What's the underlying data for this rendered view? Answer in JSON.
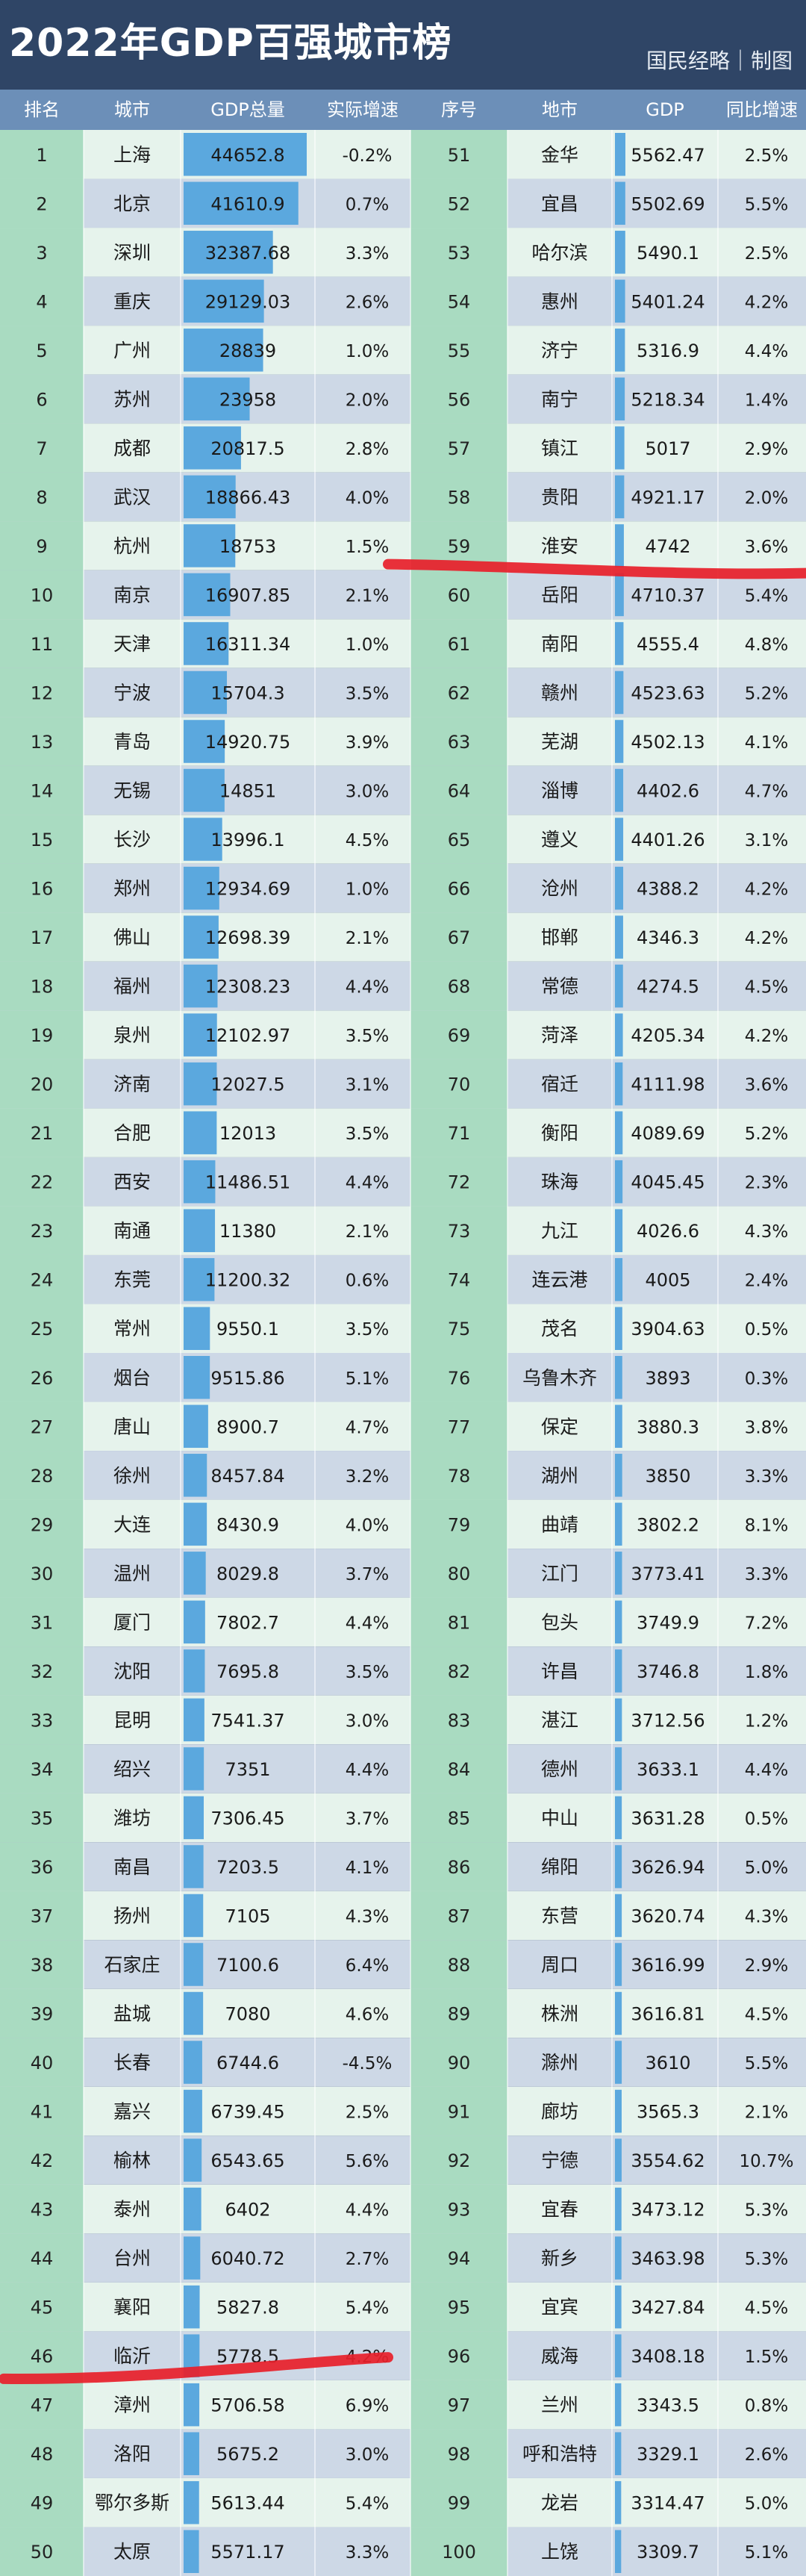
{
  "title": "2022年GDP百强城市榜",
  "brand": "国民经略｜制图",
  "header": {
    "left": [
      "排名",
      "城市",
      "GDP总量",
      "实际增速"
    ],
    "right": [
      "序号",
      "地市",
      "GDP",
      "同比增速"
    ]
  },
  "colors": {
    "title_bg": "#2f4566",
    "header_bg": "#6c8fb8",
    "rank_band": "#a9dbc1",
    "row_light": "#e6f3ec",
    "row_dark": "#cdd8e6",
    "bar_fill": "#5ba8de",
    "annotation_red": "#e8202a"
  },
  "chart_data": {
    "type": "table",
    "title": "2022年GDP百强城市榜",
    "columns": [
      "排名",
      "城市",
      "GDP总量",
      "实际增速"
    ],
    "bar_column": "GDP总量",
    "rows": [
      {
        "rank": "1",
        "city": "上海",
        "gdp": "44652.8",
        "growth": "-0.2%"
      },
      {
        "rank": "2",
        "city": "北京",
        "gdp": "41610.9",
        "growth": "0.7%"
      },
      {
        "rank": "3",
        "city": "深圳",
        "gdp": "32387.68",
        "growth": "3.3%"
      },
      {
        "rank": "4",
        "city": "重庆",
        "gdp": "29129.03",
        "growth": "2.6%"
      },
      {
        "rank": "5",
        "city": "广州",
        "gdp": "28839",
        "growth": "1.0%"
      },
      {
        "rank": "6",
        "city": "苏州",
        "gdp": "23958",
        "growth": "2.0%"
      },
      {
        "rank": "7",
        "city": "成都",
        "gdp": "20817.5",
        "growth": "2.8%"
      },
      {
        "rank": "8",
        "city": "武汉",
        "gdp": "18866.43",
        "growth": "4.0%"
      },
      {
        "rank": "9",
        "city": "杭州",
        "gdp": "18753",
        "growth": "1.5%"
      },
      {
        "rank": "10",
        "city": "南京",
        "gdp": "16907.85",
        "growth": "2.1%"
      },
      {
        "rank": "11",
        "city": "天津",
        "gdp": "16311.34",
        "growth": "1.0%"
      },
      {
        "rank": "12",
        "city": "宁波",
        "gdp": "15704.3",
        "growth": "3.5%"
      },
      {
        "rank": "13",
        "city": "青岛",
        "gdp": "14920.75",
        "growth": "3.9%"
      },
      {
        "rank": "14",
        "city": "无锡",
        "gdp": "14851",
        "growth": "3.0%"
      },
      {
        "rank": "15",
        "city": "长沙",
        "gdp": "13996.1",
        "growth": "4.5%"
      },
      {
        "rank": "16",
        "city": "郑州",
        "gdp": "12934.69",
        "growth": "1.0%"
      },
      {
        "rank": "17",
        "city": "佛山",
        "gdp": "12698.39",
        "growth": "2.1%"
      },
      {
        "rank": "18",
        "city": "福州",
        "gdp": "12308.23",
        "growth": "4.4%"
      },
      {
        "rank": "19",
        "city": "泉州",
        "gdp": "12102.97",
        "growth": "3.5%"
      },
      {
        "rank": "20",
        "city": "济南",
        "gdp": "12027.5",
        "growth": "3.1%"
      },
      {
        "rank": "21",
        "city": "合肥",
        "gdp": "12013",
        "growth": "3.5%"
      },
      {
        "rank": "22",
        "city": "西安",
        "gdp": "11486.51",
        "growth": "4.4%"
      },
      {
        "rank": "23",
        "city": "南通",
        "gdp": "11380",
        "growth": "2.1%"
      },
      {
        "rank": "24",
        "city": "东莞",
        "gdp": "11200.32",
        "growth": "0.6%"
      },
      {
        "rank": "25",
        "city": "常州",
        "gdp": "9550.1",
        "growth": "3.5%"
      },
      {
        "rank": "26",
        "city": "烟台",
        "gdp": "9515.86",
        "growth": "5.1%"
      },
      {
        "rank": "27",
        "city": "唐山",
        "gdp": "8900.7",
        "growth": "4.7%"
      },
      {
        "rank": "28",
        "city": "徐州",
        "gdp": "8457.84",
        "growth": "3.2%"
      },
      {
        "rank": "29",
        "city": "大连",
        "gdp": "8430.9",
        "growth": "4.0%"
      },
      {
        "rank": "30",
        "city": "温州",
        "gdp": "8029.8",
        "growth": "3.7%"
      },
      {
        "rank": "31",
        "city": "厦门",
        "gdp": "7802.7",
        "growth": "4.4%"
      },
      {
        "rank": "32",
        "city": "沈阳",
        "gdp": "7695.8",
        "growth": "3.5%"
      },
      {
        "rank": "33",
        "city": "昆明",
        "gdp": "7541.37",
        "growth": "3.0%"
      },
      {
        "rank": "34",
        "city": "绍兴",
        "gdp": "7351",
        "growth": "4.4%"
      },
      {
        "rank": "35",
        "city": "潍坊",
        "gdp": "7306.45",
        "growth": "3.7%"
      },
      {
        "rank": "36",
        "city": "南昌",
        "gdp": "7203.5",
        "growth": "4.1%"
      },
      {
        "rank": "37",
        "city": "扬州",
        "gdp": "7105",
        "growth": "4.3%"
      },
      {
        "rank": "38",
        "city": "石家庄",
        "gdp": "7100.6",
        "growth": "6.4%"
      },
      {
        "rank": "39",
        "city": "盐城",
        "gdp": "7080",
        "growth": "4.6%"
      },
      {
        "rank": "40",
        "city": "长春",
        "gdp": "6744.6",
        "growth": "-4.5%"
      },
      {
        "rank": "41",
        "city": "嘉兴",
        "gdp": "6739.45",
        "growth": "2.5%"
      },
      {
        "rank": "42",
        "city": "榆林",
        "gdp": "6543.65",
        "growth": "5.6%"
      },
      {
        "rank": "43",
        "city": "泰州",
        "gdp": "6402",
        "growth": "4.4%"
      },
      {
        "rank": "44",
        "city": "台州",
        "gdp": "6040.72",
        "growth": "2.7%"
      },
      {
        "rank": "45",
        "city": "襄阳",
        "gdp": "5827.8",
        "growth": "5.4%"
      },
      {
        "rank": "46",
        "city": "临沂",
        "gdp": "5778.5",
        "growth": "4.2%"
      },
      {
        "rank": "47",
        "city": "漳州",
        "gdp": "5706.58",
        "growth": "6.9%"
      },
      {
        "rank": "48",
        "city": "洛阳",
        "gdp": "5675.2",
        "growth": "3.0%"
      },
      {
        "rank": "49",
        "city": "鄂尔多斯",
        "gdp": "5613.44",
        "growth": "5.4%"
      },
      {
        "rank": "50",
        "city": "太原",
        "gdp": "5571.17",
        "growth": "3.3%"
      },
      {
        "rank": "51",
        "city": "金华",
        "gdp": "5562.47",
        "growth": "2.5%"
      },
      {
        "rank": "52",
        "city": "宜昌",
        "gdp": "5502.69",
        "growth": "5.5%"
      },
      {
        "rank": "53",
        "city": "哈尔滨",
        "gdp": "5490.1",
        "growth": "2.5%"
      },
      {
        "rank": "54",
        "city": "惠州",
        "gdp": "5401.24",
        "growth": "4.2%"
      },
      {
        "rank": "55",
        "city": "济宁",
        "gdp": "5316.9",
        "growth": "4.4%"
      },
      {
        "rank": "56",
        "city": "南宁",
        "gdp": "5218.34",
        "growth": "1.4%"
      },
      {
        "rank": "57",
        "city": "镇江",
        "gdp": "5017",
        "growth": "2.9%"
      },
      {
        "rank": "58",
        "city": "贵阳",
        "gdp": "4921.17",
        "growth": "2.0%"
      },
      {
        "rank": "59",
        "city": "淮安",
        "gdp": "4742",
        "growth": "3.6%"
      },
      {
        "rank": "60",
        "city": "岳阳",
        "gdp": "4710.37",
        "growth": "5.4%"
      },
      {
        "rank": "61",
        "city": "南阳",
        "gdp": "4555.4",
        "growth": "4.8%"
      },
      {
        "rank": "62",
        "city": "赣州",
        "gdp": "4523.63",
        "growth": "5.2%"
      },
      {
        "rank": "63",
        "city": "芜湖",
        "gdp": "4502.13",
        "growth": "4.1%"
      },
      {
        "rank": "64",
        "city": "淄博",
        "gdp": "4402.6",
        "growth": "4.7%"
      },
      {
        "rank": "65",
        "city": "遵义",
        "gdp": "4401.26",
        "growth": "3.1%"
      },
      {
        "rank": "66",
        "city": "沧州",
        "gdp": "4388.2",
        "growth": "4.2%"
      },
      {
        "rank": "67",
        "city": "邯郸",
        "gdp": "4346.3",
        "growth": "4.2%"
      },
      {
        "rank": "68",
        "city": "常德",
        "gdp": "4274.5",
        "growth": "4.5%"
      },
      {
        "rank": "69",
        "city": "菏泽",
        "gdp": "4205.34",
        "growth": "4.2%"
      },
      {
        "rank": "70",
        "city": "宿迁",
        "gdp": "4111.98",
        "growth": "3.6%"
      },
      {
        "rank": "71",
        "city": "衡阳",
        "gdp": "4089.69",
        "growth": "5.2%"
      },
      {
        "rank": "72",
        "city": "珠海",
        "gdp": "4045.45",
        "growth": "2.3%"
      },
      {
        "rank": "73",
        "city": "九江",
        "gdp": "4026.6",
        "growth": "4.3%"
      },
      {
        "rank": "74",
        "city": "连云港",
        "gdp": "4005",
        "growth": "2.4%"
      },
      {
        "rank": "75",
        "city": "茂名",
        "gdp": "3904.63",
        "growth": "0.5%"
      },
      {
        "rank": "76",
        "city": "乌鲁木齐",
        "gdp": "3893",
        "growth": "0.3%"
      },
      {
        "rank": "77",
        "city": "保定",
        "gdp": "3880.3",
        "growth": "3.8%"
      },
      {
        "rank": "78",
        "city": "湖州",
        "gdp": "3850",
        "growth": "3.3%"
      },
      {
        "rank": "79",
        "city": "曲靖",
        "gdp": "3802.2",
        "growth": "8.1%"
      },
      {
        "rank": "80",
        "city": "江门",
        "gdp": "3773.41",
        "growth": "3.3%"
      },
      {
        "rank": "81",
        "city": "包头",
        "gdp": "3749.9",
        "growth": "7.2%"
      },
      {
        "rank": "82",
        "city": "许昌",
        "gdp": "3746.8",
        "growth": "1.8%"
      },
      {
        "rank": "83",
        "city": "湛江",
        "gdp": "3712.56",
        "growth": "1.2%"
      },
      {
        "rank": "84",
        "city": "德州",
        "gdp": "3633.1",
        "growth": "4.4%"
      },
      {
        "rank": "85",
        "city": "中山",
        "gdp": "3631.28",
        "growth": "0.5%"
      },
      {
        "rank": "86",
        "city": "绵阳",
        "gdp": "3626.94",
        "growth": "5.0%"
      },
      {
        "rank": "87",
        "city": "东营",
        "gdp": "3620.74",
        "growth": "4.3%"
      },
      {
        "rank": "88",
        "city": "周口",
        "gdp": "3616.99",
        "growth": "2.9%"
      },
      {
        "rank": "89",
        "city": "株洲",
        "gdp": "3616.81",
        "growth": "4.5%"
      },
      {
        "rank": "90",
        "city": "滁州",
        "gdp": "3610",
        "growth": "5.5%"
      },
      {
        "rank": "91",
        "city": "廊坊",
        "gdp": "3565.3",
        "growth": "2.1%"
      },
      {
        "rank": "92",
        "city": "宁德",
        "gdp": "3554.62",
        "growth": "10.7%"
      },
      {
        "rank": "93",
        "city": "宜春",
        "gdp": "3473.12",
        "growth": "5.3%"
      },
      {
        "rank": "94",
        "city": "新乡",
        "gdp": "3463.98",
        "growth": "5.3%"
      },
      {
        "rank": "95",
        "city": "宜宾",
        "gdp": "3427.84",
        "growth": "4.5%"
      },
      {
        "rank": "96",
        "city": "威海",
        "gdp": "3408.18",
        "growth": "1.5%"
      },
      {
        "rank": "97",
        "city": "兰州",
        "gdp": "3343.5",
        "growth": "0.8%"
      },
      {
        "rank": "98",
        "city": "呼和浩特",
        "gdp": "3329.1",
        "growth": "2.6%"
      },
      {
        "rank": "99",
        "city": "龙岩",
        "gdp": "3314.47",
        "growth": "5.0%"
      },
      {
        "rank": "100",
        "city": "上饶",
        "gdp": "3309.7",
        "growth": "5.1%"
      }
    ],
    "highlighted_ranks": [
      "60",
      "46"
    ]
  }
}
